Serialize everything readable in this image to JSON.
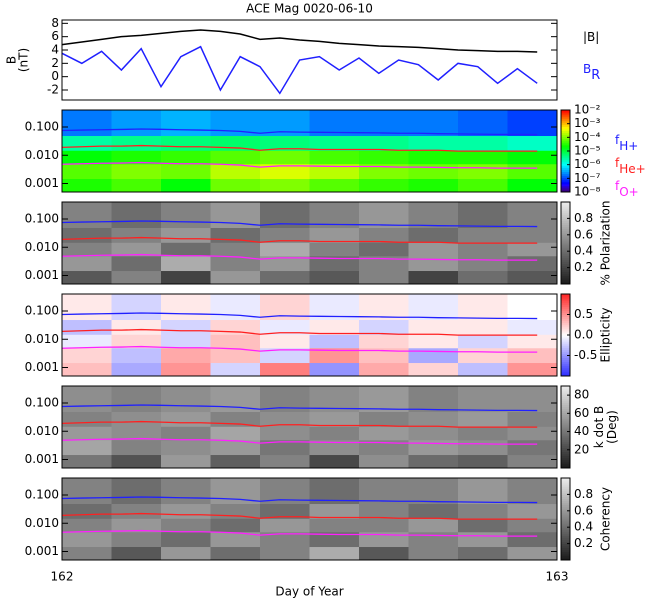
{
  "chart_data": [
    {
      "type": "line",
      "title": "ACE Mag 0020-06-10",
      "ylabel": [
        "B",
        "(nT)"
      ],
      "xlim": [
        162,
        163
      ],
      "ylim": [
        -3.5,
        8.5
      ],
      "yticks": [
        -2,
        0,
        2,
        4,
        6,
        8
      ],
      "x": [
        162,
        162.04,
        162.08,
        162.12,
        162.16,
        162.2,
        162.24,
        162.28,
        162.32,
        162.36,
        162.4,
        162.44,
        162.48,
        162.52,
        162.56,
        162.6,
        162.64,
        162.68,
        162.72,
        162.76,
        162.8,
        162.84,
        162.88,
        162.92,
        162.96
      ],
      "series": [
        {
          "name": "|B|",
          "color": "#000000",
          "values": [
            4.8,
            5.2,
            5.6,
            6.0,
            6.2,
            6.5,
            6.8,
            7.0,
            6.8,
            6.4,
            5.6,
            5.8,
            5.5,
            5.3,
            5.0,
            4.8,
            4.6,
            4.5,
            4.4,
            4.2,
            4.0,
            3.9,
            3.8,
            3.8,
            3.7
          ]
        },
        {
          "name": "B",
          "subscript": "R",
          "color": "#2020ff",
          "values": [
            3.5,
            2.0,
            3.8,
            1.0,
            4.2,
            -1.5,
            3.0,
            4.5,
            -2.0,
            3.0,
            1.5,
            -2.5,
            2.5,
            3.0,
            1.0,
            2.8,
            0.5,
            2.5,
            1.8,
            -0.5,
            2.0,
            1.5,
            -1.0,
            1.2,
            -1.0
          ]
        }
      ]
    },
    {
      "type": "heatmap",
      "xlim": [
        162,
        163
      ],
      "ylim": [
        0.0005,
        0.4
      ],
      "ylog": true,
      "yticks": [
        0.001,
        {
          "value": 0.01,
          "label": "0.010"
        },
        {
          "value": 0.1,
          "label": "0.100"
        }
      ],
      "xbins": [
        162,
        162.1,
        162.2,
        162.3,
        162.4,
        162.5,
        162.6,
        162.7,
        162.8,
        162.9,
        163
      ],
      "ybins": [
        0.0005,
        0.0015,
        0.005,
        0.015,
        0.05,
        0.4
      ],
      "cmap": "rainbow",
      "clog": true,
      "clim": [
        1e-08,
        0.01
      ],
      "cticks": [
        {
          "value": 0.01,
          "label": "10⁻²"
        },
        {
          "value": 0.001,
          "label": "10⁻³"
        },
        {
          "value": 0.0001,
          "label": "10⁻⁴"
        },
        {
          "value": 1e-05,
          "label": "10⁻⁵"
        },
        {
          "value": 1e-06,
          "label": "10⁻⁶"
        },
        {
          "value": 1e-07,
          "label": "10⁻⁷"
        },
        {
          "value": 1e-08,
          "label": "10⁻⁸"
        }
      ],
      "z": [
        [
          3e-05,
          5e-05,
          2e-05,
          8e-05,
          0.0001,
          6e-05,
          4e-05,
          3e-05,
          5e-05,
          2e-05
        ],
        [
          6e-05,
          0.0001,
          8e-05,
          0.0002,
          0.0003,
          0.0002,
          0.0001,
          8e-05,
          0.0001,
          6e-05
        ],
        [
          2e-05,
          3e-05,
          4e-05,
          6e-05,
          8e-05,
          5e-05,
          4e-05,
          3e-05,
          3e-05,
          2e-05
        ],
        [
          3e-06,
          4e-06,
          5e-06,
          6e-06,
          5e-06,
          4e-06,
          4e-06,
          3e-06,
          3e-06,
          2e-06
        ],
        [
          2e-07,
          3e-07,
          4e-07,
          3e-07,
          3e-07,
          2e-07,
          2e-07,
          2e-07,
          1.5e-07,
          1e-07
        ]
      ],
      "x": [
        162,
        162.04,
        162.08,
        162.12,
        162.16,
        162.2,
        162.24,
        162.28,
        162.32,
        162.36,
        162.4,
        162.44,
        162.48,
        162.52,
        162.56,
        162.6,
        162.64,
        162.68,
        162.72,
        162.76,
        162.8,
        162.84,
        162.88,
        162.92,
        162.96
      ],
      "series": [
        {
          "name": "f",
          "subscript": "H+",
          "color": "#2020ff",
          "values": [
            0.075,
            0.078,
            0.08,
            0.082,
            0.085,
            0.083,
            0.08,
            0.078,
            0.075,
            0.07,
            0.06,
            0.068,
            0.066,
            0.065,
            0.064,
            0.063,
            0.062,
            0.06,
            0.06,
            0.058,
            0.057,
            0.056,
            0.055,
            0.055,
            0.054
          ]
        },
        {
          "name": "f",
          "subscript": "He+",
          "color": "#ff2020",
          "values": [
            0.019,
            0.02,
            0.021,
            0.021,
            0.022,
            0.021,
            0.02,
            0.02,
            0.019,
            0.018,
            0.015,
            0.017,
            0.017,
            0.016,
            0.016,
            0.016,
            0.016,
            0.015,
            0.015,
            0.015,
            0.014,
            0.014,
            0.014,
            0.014,
            0.014
          ]
        },
        {
          "name": "f",
          "subscript": "O+",
          "color": "#ff20ff",
          "values": [
            0.0048,
            0.005,
            0.0052,
            0.0053,
            0.0055,
            0.0052,
            0.005,
            0.005,
            0.0048,
            0.0045,
            0.0038,
            0.0042,
            0.0042,
            0.0041,
            0.004,
            0.004,
            0.004,
            0.0038,
            0.0038,
            0.0037,
            0.0036,
            0.0036,
            0.0035,
            0.0035,
            0.0035
          ]
        }
      ]
    },
    {
      "type": "heatmap",
      "xlim": [
        162,
        163
      ],
      "ylim": [
        0.0005,
        0.4
      ],
      "ylog": true,
      "yticks": [
        0.001,
        {
          "value": 0.01,
          "label": "0.010"
        },
        {
          "value": 0.1,
          "label": "0.100"
        }
      ],
      "xbins": [
        162,
        162.1,
        162.2,
        162.3,
        162.4,
        162.5,
        162.6,
        162.7,
        162.8,
        162.9,
        163
      ],
      "ybins": [
        0.0005,
        0.0015,
        0.005,
        0.015,
        0.05,
        0.4
      ],
      "cmap": "gray",
      "clim": [
        0,
        1
      ],
      "cticks": [
        0.2,
        0.4,
        0.6,
        0.8
      ],
      "colorbar_label": [
        "% Polarization"
      ],
      "z": [
        [
          0.3,
          0.5,
          0.2,
          0.6,
          0.4,
          0.3,
          0.5,
          0.2,
          0.4,
          0.3
        ],
        [
          0.6,
          0.4,
          0.7,
          0.5,
          0.6,
          0.4,
          0.5,
          0.6,
          0.5,
          0.4
        ],
        [
          0.5,
          0.6,
          0.4,
          0.5,
          0.7,
          0.5,
          0.4,
          0.6,
          0.5,
          0.6
        ],
        [
          0.4,
          0.5,
          0.6,
          0.4,
          0.5,
          0.6,
          0.5,
          0.4,
          0.5,
          0.5
        ],
        [
          0.5,
          0.4,
          0.5,
          0.6,
          0.4,
          0.5,
          0.6,
          0.5,
          0.4,
          0.5
        ]
      ]
    },
    {
      "type": "heatmap",
      "xlim": [
        162,
        163
      ],
      "ylim": [
        0.0005,
        0.4
      ],
      "ylog": true,
      "yticks": [
        0.001,
        {
          "value": 0.01,
          "label": "0.010"
        },
        {
          "value": 0.1,
          "label": "0.100"
        }
      ],
      "xbins": [
        162,
        162.1,
        162.2,
        162.3,
        162.4,
        162.5,
        162.6,
        162.7,
        162.8,
        162.9,
        163
      ],
      "ybins": [
        0.0005,
        0.0015,
        0.005,
        0.015,
        0.05,
        0.4
      ],
      "cmap": "bwr",
      "clim": [
        -1,
        1
      ],
      "cticks": [
        -0.5,
        {
          "value": 0,
          "label": "0.0"
        },
        0.5
      ],
      "colorbar_label": [
        "Ellipticity"
      ],
      "z": [
        [
          0.3,
          -0.4,
          0.5,
          -0.2,
          0.6,
          -0.5,
          0.4,
          0.2,
          -0.3,
          0.5
        ],
        [
          0.2,
          -0.3,
          0.4,
          0.3,
          -0.2,
          0.5,
          0.3,
          -0.4,
          0.2,
          0.3
        ],
        [
          -0.1,
          0.2,
          -0.2,
          0.3,
          0.1,
          -0.3,
          0.2,
          0.1,
          -0.2,
          0.1
        ],
        [
          -0.3,
          0.1,
          -0.2,
          0.2,
          -0.1,
          0.1,
          -0.2,
          0.1,
          0.1,
          -0.1
        ],
        [
          0.1,
          -0.2,
          0.1,
          -0.1,
          0.2,
          -0.1,
          0.1,
          -0.1,
          0.1,
          0.0
        ]
      ]
    },
    {
      "type": "heatmap",
      "xlim": [
        162,
        163
      ],
      "ylim": [
        0.0005,
        0.4
      ],
      "ylog": true,
      "yticks": [
        0.001,
        {
          "value": 0.01,
          "label": "0.010"
        },
        {
          "value": 0.1,
          "label": "0.100"
        }
      ],
      "xbins": [
        162,
        162.1,
        162.2,
        162.3,
        162.4,
        162.5,
        162.6,
        162.7,
        162.8,
        162.9,
        163
      ],
      "ybins": [
        0.0005,
        0.0015,
        0.005,
        0.015,
        0.05,
        0.4
      ],
      "cmap": "gray",
      "clim": [
        0,
        90
      ],
      "cticks": [
        20,
        40,
        60,
        80
      ],
      "colorbar_label": [
        "k dot B",
        "(Deg)"
      ],
      "z": [
        [
          40,
          25,
          55,
          30,
          45,
          20,
          50,
          35,
          30,
          45
        ],
        [
          60,
          45,
          50,
          55,
          40,
          50,
          45,
          55,
          50,
          40
        ],
        [
          55,
          50,
          45,
          60,
          50,
          45,
          55,
          50,
          45,
          50
        ],
        [
          45,
          50,
          55,
          45,
          50,
          55,
          45,
          50,
          55,
          45
        ],
        [
          50,
          45,
          50,
          55,
          45,
          50,
          55,
          45,
          50,
          50
        ]
      ]
    },
    {
      "type": "heatmap",
      "xlim": [
        162,
        163
      ],
      "ylim": [
        0.0005,
        0.4
      ],
      "ylog": true,
      "yticks": [
        0.001,
        {
          "value": 0.01,
          "label": "0.010"
        },
        {
          "value": 0.1,
          "label": "0.100"
        }
      ],
      "xbins": [
        162,
        162.1,
        162.2,
        162.3,
        162.4,
        162.5,
        162.6,
        162.7,
        162.8,
        162.9,
        163
      ],
      "ybins": [
        0.0005,
        0.0015,
        0.005,
        0.015,
        0.05,
        0.4
      ],
      "cmap": "gray",
      "clim": [
        0,
        1
      ],
      "cticks": [
        0.2,
        0.4,
        0.6,
        0.8
      ],
      "colorbar_label": [
        "Coherency"
      ],
      "xticks": [
        162,
        163
      ],
      "xlabel": "Day of Year",
      "z": [
        [
          0.5,
          0.3,
          0.6,
          0.4,
          0.5,
          0.7,
          0.3,
          0.5,
          0.4,
          0.6
        ],
        [
          0.6,
          0.5,
          0.4,
          0.6,
          0.5,
          0.4,
          0.6,
          0.5,
          0.6,
          0.4
        ],
        [
          0.5,
          0.6,
          0.5,
          0.4,
          0.6,
          0.5,
          0.5,
          0.6,
          0.4,
          0.5
        ],
        [
          0.4,
          0.5,
          0.6,
          0.5,
          0.4,
          0.6,
          0.5,
          0.4,
          0.5,
          0.6
        ],
        [
          0.5,
          0.4,
          0.5,
          0.6,
          0.5,
          0.4,
          0.5,
          0.5,
          0.6,
          0.5
        ]
      ]
    }
  ]
}
